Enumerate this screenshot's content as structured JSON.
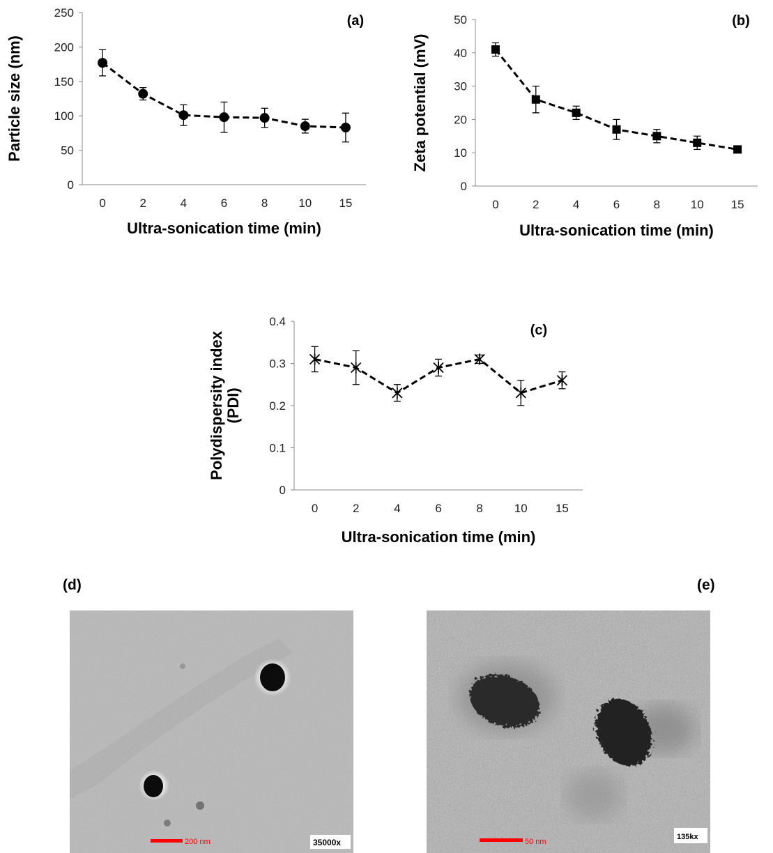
{
  "chart_data": [
    {
      "type": "line",
      "panel": "(a)",
      "xlabel": "Ultra-sonication time (min)",
      "ylabel": "Particle size (nm)",
      "categories": [
        "0",
        "2",
        "4",
        "6",
        "8",
        "10",
        "15"
      ],
      "values": [
        177,
        132,
        101,
        98,
        97,
        85,
        83
      ],
      "errors": [
        19,
        9,
        15,
        22,
        14,
        10,
        21
      ],
      "marker": "circle",
      "ylim": [
        0,
        250
      ],
      "yticks": [
        "0",
        "50",
        "100",
        "150",
        "200",
        "250"
      ],
      "grid": false,
      "line_style": "dashed",
      "color": "#000000"
    },
    {
      "type": "line",
      "panel": "(b)",
      "xlabel": "Ultra-sonication time (min)",
      "ylabel": "Zeta potential (mV)",
      "categories": [
        "0",
        "2",
        "4",
        "6",
        "8",
        "10",
        "15"
      ],
      "values": [
        41,
        26,
        22,
        17,
        15,
        13,
        11
      ],
      "errors": [
        2,
        4,
        2,
        3,
        2,
        2,
        1
      ],
      "marker": "square",
      "ylim": [
        0,
        50
      ],
      "yticks": [
        "0",
        "10",
        "20",
        "30",
        "40",
        "50"
      ],
      "grid": false,
      "line_style": "dashed",
      "color": "#000000"
    },
    {
      "type": "line",
      "panel": "(c)",
      "xlabel": "Ultra-sonication time (min)",
      "ylabel_line1": "Polydispersity index",
      "ylabel_line2": "(PDI)",
      "categories": [
        "0",
        "2",
        "4",
        "6",
        "8",
        "10",
        "15"
      ],
      "values": [
        0.31,
        0.29,
        0.23,
        0.29,
        0.31,
        0.23,
        0.26
      ],
      "errors": [
        0.03,
        0.04,
        0.02,
        0.02,
        0.01,
        0.03,
        0.02
      ],
      "marker": "star",
      "ylim": [
        0,
        0.4
      ],
      "yticks": [
        "0",
        "0.1",
        "0.2",
        "0.3",
        "0.4"
      ],
      "grid": false,
      "line_style": "dashed",
      "color": "#000000"
    }
  ],
  "micrographs": {
    "d": {
      "panel": "(d)",
      "scale_bar": "200 nm",
      "magnification": "35000x"
    },
    "e": {
      "panel": "(e)",
      "scale_bar": "50 nm",
      "magnification": "135kx"
    }
  },
  "colors": {
    "scale_bar": "#ff0000",
    "background_tem": "#b4b4b4"
  }
}
